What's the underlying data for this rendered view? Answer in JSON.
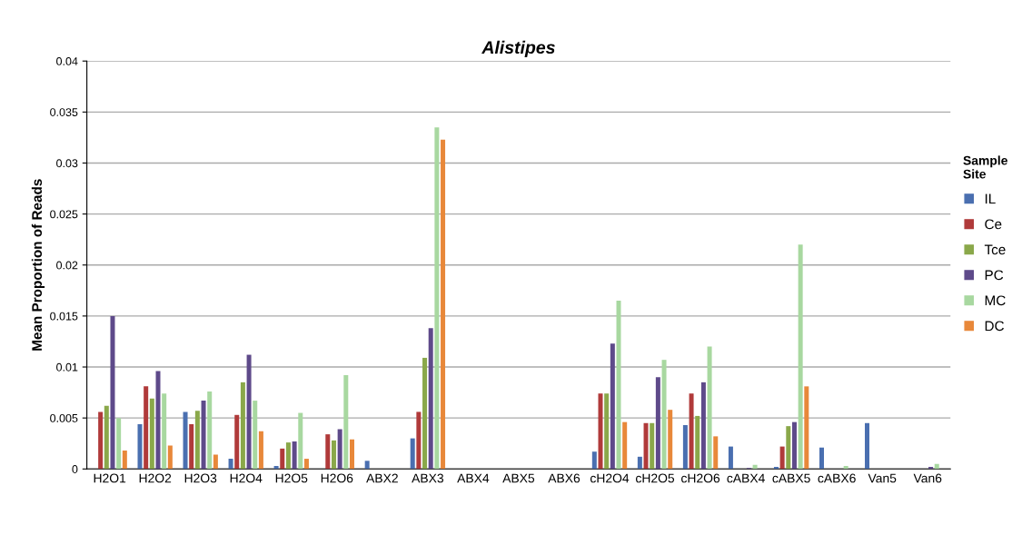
{
  "chart_data": {
    "type": "bar",
    "title": "Alistipes",
    "ylabel": "Mean Proportion of Reads",
    "legend_title": "Sample\nSite",
    "categories": [
      "H2O1",
      "H2O2",
      "H2O3",
      "H2O4",
      "H2O5",
      "H2O6",
      "ABX2",
      "ABX3",
      "ABX4",
      "ABX5",
      "ABX6",
      "cH2O4",
      "cH2O5",
      "cH2O6",
      "cABX4",
      "cABX5",
      "cABX6",
      "Van5",
      "Van6"
    ],
    "series": [
      {
        "name": "IL",
        "color": "#4a6fb0",
        "values": [
          0,
          0.0044,
          0.0056,
          0.001,
          0.0003,
          0,
          0.0008,
          0.003,
          0,
          0,
          0,
          0.0017,
          0.0012,
          0.0043,
          0.0022,
          0.0002,
          0.0021,
          0.0045,
          0
        ]
      },
      {
        "name": "Ce",
        "color": "#b03a3a",
        "values": [
          0.0056,
          0.0081,
          0.0044,
          0.0053,
          0.002,
          0.0034,
          0,
          0.0056,
          0,
          0,
          0,
          0.0074,
          0.0045,
          0.0074,
          0,
          0.0022,
          0,
          0,
          0
        ]
      },
      {
        "name": "Tce",
        "color": "#8aa84a",
        "values": [
          0.0062,
          0.0069,
          0.0057,
          0.0085,
          0.0026,
          0.0028,
          0,
          0.0109,
          0,
          0,
          0,
          0.0074,
          0.0045,
          0.0052,
          0,
          0.0042,
          0,
          0,
          0
        ]
      },
      {
        "name": "PC",
        "color": "#5e4a8a",
        "values": [
          0.015,
          0.0096,
          0.0067,
          0.0112,
          0.0027,
          0.0039,
          0,
          0.0138,
          0,
          0,
          0,
          0.0123,
          0.009,
          0.0085,
          0.0001,
          0.0046,
          0,
          0,
          0.0002
        ]
      },
      {
        "name": "MC",
        "color": "#a8d8a0",
        "values": [
          0.005,
          0.0074,
          0.0076,
          0.0067,
          0.0055,
          0.0092,
          0,
          0.0335,
          0,
          0,
          0,
          0.0165,
          0.0107,
          0.012,
          0.0004,
          0.022,
          0.0003,
          0,
          0.0005
        ]
      },
      {
        "name": "DC",
        "color": "#e8883a",
        "values": [
          0.0018,
          0.0023,
          0.0014,
          0.0037,
          0.001,
          0.0029,
          0,
          0.0323,
          0,
          0,
          0,
          0.0046,
          0.0058,
          0.0032,
          0,
          0.0081,
          0,
          0,
          0
        ]
      }
    ],
    "ylim": [
      0,
      0.04
    ],
    "yticks": [
      0,
      0.005,
      0.01,
      0.015,
      0.02,
      0.025,
      0.03,
      0.035,
      0.04
    ],
    "grid": "y",
    "legend": "right"
  }
}
